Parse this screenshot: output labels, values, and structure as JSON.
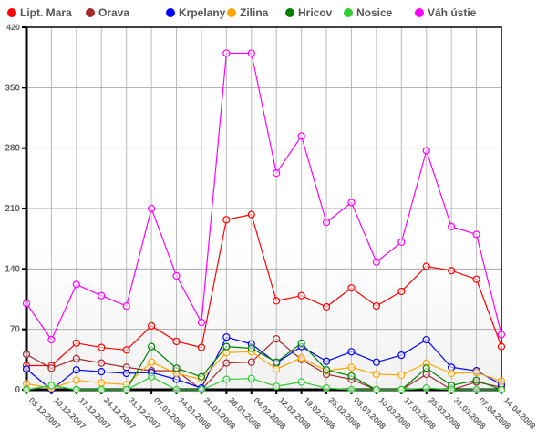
{
  "chart_data": {
    "type": "line",
    "title": "",
    "xlabel": "",
    "ylabel": "",
    "ylim": [
      0,
      420
    ],
    "yticks": [
      0,
      70,
      140,
      210,
      280,
      350,
      420
    ],
    "grid": true,
    "legend_position": "top",
    "categories": [
      "03.12.2007",
      "10.12.2007",
      "17.12.2007",
      "24.12.2007",
      "31.12.2007",
      "07.01.2008",
      "14.01.2008",
      "21.01.2008",
      "28.01.2008",
      "04.02.2008",
      "12.02.2008",
      "19.02.2008",
      "25.02.2008",
      "03.03.2008",
      "10.03.2008",
      "17.03.2008",
      "25.03.2008",
      "31.03.2008",
      "07.04.2008",
      "14.04.2008"
    ],
    "series": [
      {
        "name": "Lipt. Mara",
        "color": "#ff0000",
        "values": [
          28,
          28,
          54,
          49,
          46,
          74,
          56,
          49,
          197,
          203,
          103,
          109,
          96,
          118,
          97,
          114,
          143,
          138,
          128,
          50
        ]
      },
      {
        "name": "Orava",
        "color": "#a52a2a",
        "values": [
          41,
          25,
          36,
          31,
          26,
          22,
          22,
          0,
          31,
          32,
          59,
          35,
          18,
          12,
          0,
          0,
          18,
          0,
          9,
          3
        ]
      },
      {
        "name": "Krpelany",
        "color": "#0000ff",
        "values": [
          24,
          0,
          23,
          21,
          19,
          20,
          12,
          2,
          61,
          53,
          31,
          50,
          33,
          44,
          32,
          40,
          58,
          26,
          22,
          6
        ]
      },
      {
        "name": "Zilina",
        "color": "#ffa500",
        "values": [
          7,
          2,
          11,
          8,
          6,
          32,
          19,
          12,
          43,
          44,
          24,
          37,
          22,
          26,
          18,
          17,
          31,
          19,
          20,
          10
        ]
      },
      {
        "name": "Hricov",
        "color": "#008000",
        "values": [
          0,
          5,
          0,
          0,
          0,
          50,
          25,
          15,
          50,
          48,
          32,
          54,
          23,
          16,
          0,
          0,
          25,
          5,
          11,
          0
        ]
      },
      {
        "name": "Nosice",
        "color": "#32cd32",
        "values": [
          0,
          5,
          0,
          0,
          0,
          15,
          0,
          0,
          12,
          13,
          4,
          9,
          2,
          0,
          0,
          0,
          2,
          0,
          0,
          0
        ]
      },
      {
        "name": "Váh ústie",
        "color": "#ff00ff",
        "values": [
          100,
          58,
          122,
          109,
          97,
          210,
          132,
          78,
          390,
          390,
          251,
          294,
          194,
          217,
          148,
          171,
          277,
          189,
          180,
          64
        ]
      }
    ]
  }
}
